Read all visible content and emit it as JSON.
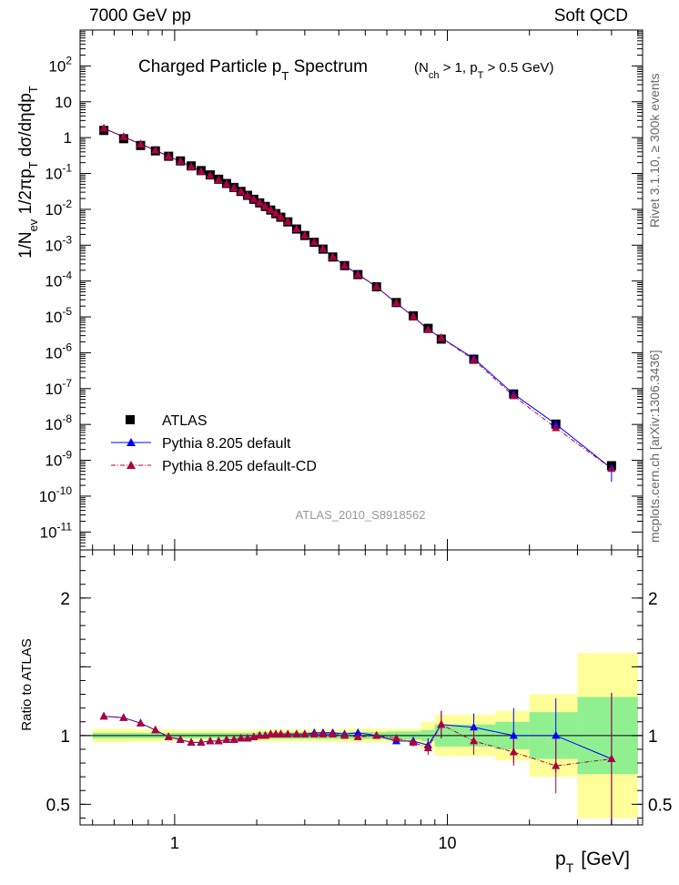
{
  "header": {
    "left": "7000 GeV pp",
    "right": "Soft QCD"
  },
  "side": {
    "rivet": "Rivet 3.1.10, ≥ 300k events",
    "mcplots": "mcplots.cern.ch [arXiv:1306.3436]"
  },
  "colors": {
    "atlas": "#000000",
    "default": "#0000ff",
    "cd": "#b0003a",
    "band_stat": "#90f090",
    "band_tot": "#ffff99"
  },
  "chart_data": {
    "type": "scatter",
    "title": "Charged Particle p_T Spectrum",
    "title_main": "Charged Particle p",
    "title_sub": "T",
    "title_tail": " Spectrum",
    "cuts_n": "(N",
    "cuts_n_sub": "ch",
    "cuts_mid": " > 1, p",
    "cuts_p_sub": "T",
    "cuts_tail": " > 0.5 GeV)",
    "ylabel": "1/N_ev 1/2πp_T dσ/dηdp_T",
    "ylabel_parts": [
      "1/N",
      "ev",
      " 1/2πp",
      "T",
      " dσ/dηdp",
      "T"
    ],
    "ratio_ylabel": "Ratio to ATLAS",
    "xlabel_main": "p",
    "xlabel_sub": "T",
    "xlabel_unit": "[GeV]",
    "analysis_tag": "ATLAS_2010_S8918562",
    "xlim": [
      0.45,
      52
    ],
    "ylim_log10": [
      -11.5,
      3
    ],
    "ratio_ylim": [
      0.35,
      2.35
    ],
    "main_yticks": [
      {
        "exp": "-11",
        "label": "10"
      },
      {
        "exp": "-10",
        "label": "10"
      },
      {
        "exp": "-9",
        "label": "10"
      },
      {
        "exp": "-8",
        "label": "10"
      },
      {
        "exp": "-7",
        "label": "10"
      },
      {
        "exp": "-6",
        "label": "10"
      },
      {
        "exp": "-5",
        "label": "10"
      },
      {
        "exp": "-4",
        "label": "10"
      },
      {
        "exp": "-3",
        "label": "10"
      },
      {
        "exp": "-2",
        "label": "10"
      },
      {
        "exp": "-1",
        "label": "10"
      },
      {
        "exp": "",
        "label": "1"
      },
      {
        "exp": "",
        "label": "10"
      },
      {
        "exp": "2",
        "label": "10"
      }
    ],
    "ratio_yticks": [
      "0.5",
      "1",
      "2"
    ],
    "xticks": [
      "1",
      "10"
    ],
    "legend": [
      {
        "key": "atlas",
        "label": "ATLAS"
      },
      {
        "key": "default",
        "label": "Pythia 8.205 default"
      },
      {
        "key": "cd",
        "label": "Pythia 8.205 default-CD"
      }
    ],
    "x": [
      0.55,
      0.65,
      0.75,
      0.85,
      0.95,
      1.05,
      1.15,
      1.25,
      1.35,
      1.45,
      1.55,
      1.65,
      1.75,
      1.85,
      1.95,
      2.05,
      2.15,
      2.25,
      2.35,
      2.45,
      2.6,
      2.8,
      3.0,
      3.25,
      3.5,
      3.8,
      4.2,
      4.7,
      5.5,
      6.5,
      7.5,
      8.5,
      9.5,
      12.5,
      17.5,
      25.0,
      40.0
    ],
    "atlas_log10": [
      0.2,
      -0.03,
      -0.22,
      -0.37,
      -0.52,
      -0.65,
      -0.79,
      -0.92,
      -1.04,
      -1.16,
      -1.28,
      -1.39,
      -1.5,
      -1.61,
      -1.72,
      -1.82,
      -1.92,
      -2.02,
      -2.12,
      -2.22,
      -2.35,
      -2.55,
      -2.73,
      -2.92,
      -3.11,
      -3.33,
      -3.57,
      -3.82,
      -4.16,
      -4.6,
      -4.97,
      -5.32,
      -5.62,
      -6.18,
      -7.15,
      -7.99,
      -9.15
    ],
    "series": [
      {
        "name": "Pythia 8.205 default",
        "key": "default",
        "ratio": [
          1.14,
          1.13,
          1.09,
          1.04,
          0.99,
          0.97,
          0.95,
          0.95,
          0.96,
          0.96,
          0.97,
          0.97,
          0.98,
          0.98,
          0.99,
          1.0,
          1.0,
          1.01,
          1.01,
          1.01,
          1.01,
          1.01,
          1.01,
          1.02,
          1.02,
          1.02,
          1.01,
          1.02,
          1.0,
          0.96,
          0.96,
          0.93,
          1.08,
          1.06,
          1.0,
          1.0,
          0.83
        ],
        "ratio_err": [
          0.005,
          0.005,
          0.005,
          0.005,
          0.005,
          0.005,
          0.005,
          0.005,
          0.005,
          0.005,
          0.005,
          0.005,
          0.005,
          0.005,
          0.005,
          0.005,
          0.005,
          0.005,
          0.005,
          0.005,
          0.005,
          0.005,
          0.005,
          0.005,
          0.005,
          0.005,
          0.006,
          0.007,
          0.01,
          0.02,
          0.03,
          0.05,
          0.1,
          0.1,
          0.2,
          0.27,
          0.48
        ]
      },
      {
        "name": "Pythia 8.205 default-CD",
        "key": "cd",
        "ratio": [
          1.14,
          1.13,
          1.09,
          1.04,
          0.99,
          0.97,
          0.95,
          0.95,
          0.96,
          0.96,
          0.97,
          0.97,
          0.98,
          0.98,
          0.99,
          1.0,
          1.0,
          1.01,
          1.01,
          1.01,
          1.01,
          1.01,
          1.01,
          1.01,
          1.01,
          1.01,
          1.0,
          0.99,
          1.0,
          0.98,
          0.95,
          0.91,
          1.08,
          0.96,
          0.88,
          0.78,
          0.83
        ],
        "ratio_err": [
          0.005,
          0.005,
          0.005,
          0.005,
          0.005,
          0.005,
          0.005,
          0.005,
          0.005,
          0.005,
          0.005,
          0.005,
          0.005,
          0.005,
          0.005,
          0.005,
          0.005,
          0.005,
          0.005,
          0.005,
          0.005,
          0.005,
          0.005,
          0.005,
          0.005,
          0.005,
          0.006,
          0.007,
          0.01,
          0.02,
          0.03,
          0.05,
          0.1,
          0.1,
          0.1,
          0.2,
          0.48
        ]
      }
    ],
    "bands": [
      {
        "x0": 0.5,
        "x1": 0.7,
        "stat": 0.02,
        "tot": 0.05
      },
      {
        "x0": 0.7,
        "x1": 1.0,
        "stat": 0.02,
        "tot": 0.045
      },
      {
        "x0": 1.0,
        "x1": 2.0,
        "stat": 0.02,
        "tot": 0.04
      },
      {
        "x0": 2.0,
        "x1": 4.0,
        "stat": 0.025,
        "tot": 0.045
      },
      {
        "x0": 4.0,
        "x1": 6.0,
        "stat": 0.025,
        "tot": 0.05
      },
      {
        "x0": 6.0,
        "x1": 8.0,
        "stat": 0.03,
        "tot": 0.05
      },
      {
        "x0": 8.0,
        "x1": 9.0,
        "stat": 0.04,
        "tot": 0.1
      },
      {
        "x0": 9.0,
        "x1": 10.0,
        "stat": 0.08,
        "tot": 0.15
      },
      {
        "x0": 10.0,
        "x1": 15.0,
        "stat": 0.08,
        "tot": 0.15
      },
      {
        "x0": 15.0,
        "x1": 20.0,
        "stat": 0.1,
        "tot": 0.18
      },
      {
        "x0": 20.0,
        "x1": 30.0,
        "stat": 0.17,
        "tot": 0.3
      },
      {
        "x0": 30.0,
        "x1": 50.0,
        "stat": 0.28,
        "tot": 0.6
      }
    ]
  }
}
